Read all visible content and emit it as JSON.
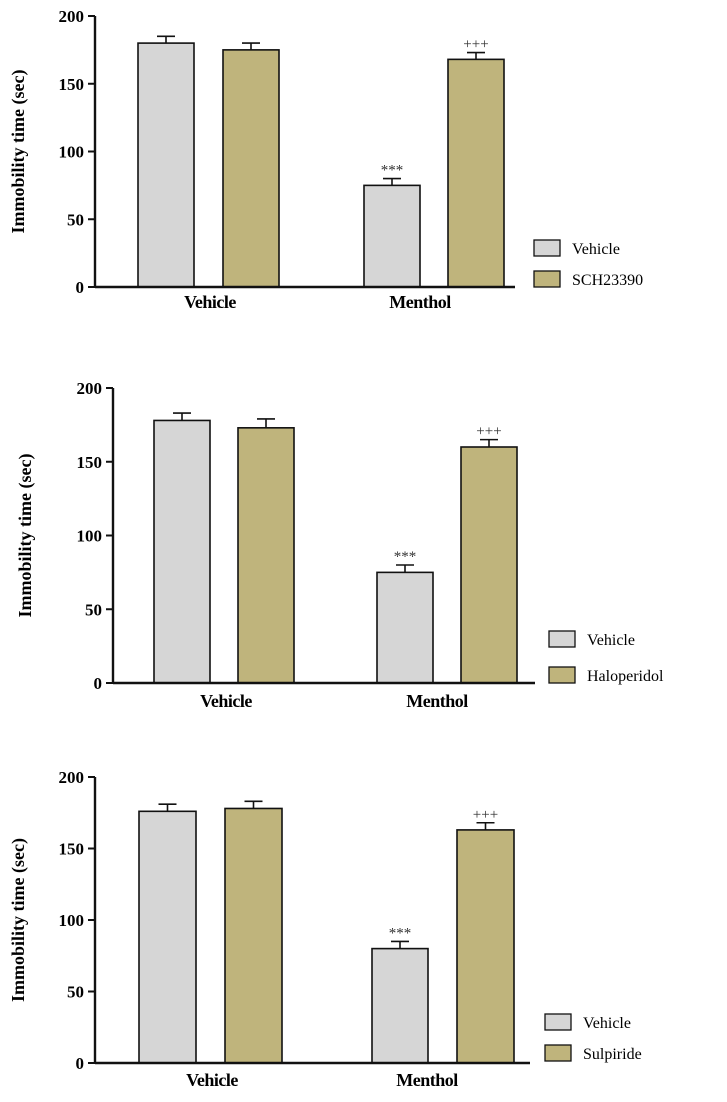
{
  "colors": {
    "vehicle_bar": "#d6d6d6",
    "drug_bar": "#bfb47c",
    "stroke": "#111111"
  },
  "chart_data": [
    {
      "type": "bar",
      "ylabel": "Immobility time (sec)",
      "ylim": [
        0,
        200
      ],
      "yticks": [
        0,
        50,
        100,
        150,
        200
      ],
      "categories": [
        "Vehicle",
        "Menthol"
      ],
      "series": [
        {
          "name": "Vehicle",
          "values": [
            180,
            75
          ],
          "errors": [
            5,
            5
          ]
        },
        {
          "name": "SCH23390",
          "values": [
            175,
            168
          ],
          "errors": [
            5,
            5
          ]
        }
      ],
      "annotations": [
        {
          "category": "Menthol",
          "series": "Vehicle",
          "text": "***"
        },
        {
          "category": "Menthol",
          "series": "SCH23390",
          "text": "+++"
        }
      ],
      "legend": "right"
    },
    {
      "type": "bar",
      "ylabel": "Immobility time (sec)",
      "ylim": [
        0,
        200
      ],
      "yticks": [
        0,
        50,
        100,
        150,
        200
      ],
      "categories": [
        "Vehicle",
        "Menthol"
      ],
      "series": [
        {
          "name": "Vehicle",
          "values": [
            178,
            75
          ],
          "errors": [
            5,
            5
          ]
        },
        {
          "name": "Haloperidol",
          "values": [
            173,
            160
          ],
          "errors": [
            6,
            5
          ]
        }
      ],
      "annotations": [
        {
          "category": "Menthol",
          "series": "Vehicle",
          "text": "***"
        },
        {
          "category": "Menthol",
          "series": "Haloperidol",
          "text": "+++"
        }
      ],
      "legend": "right"
    },
    {
      "type": "bar",
      "ylabel": "Immobility time (sec)",
      "ylim": [
        0,
        200
      ],
      "yticks": [
        0,
        50,
        100,
        150,
        200
      ],
      "categories": [
        "Vehicle",
        "Menthol"
      ],
      "series": [
        {
          "name": "Vehicle",
          "values": [
            176,
            80
          ],
          "errors": [
            5,
            5
          ]
        },
        {
          "name": "Sulpiride",
          "values": [
            178,
            163
          ],
          "errors": [
            5,
            5
          ]
        }
      ],
      "annotations": [
        {
          "category": "Menthol",
          "series": "Vehicle",
          "text": "***"
        },
        {
          "category": "Menthol",
          "series": "Sulpiride",
          "text": "+++"
        }
      ],
      "legend": "right"
    }
  ]
}
